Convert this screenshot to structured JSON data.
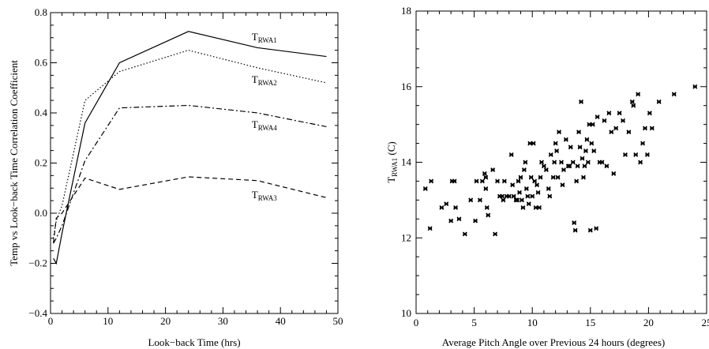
{
  "chart_data": [
    {
      "type": "line",
      "xlabel": "Look−back Time (hrs)",
      "ylabel": "Temp vs Look−back Time Correlation Coefficient",
      "xlim": [
        0,
        50
      ],
      "ylim": [
        -0.4,
        0.8
      ],
      "xticks": [
        "0",
        "10",
        "20",
        "30",
        "40",
        "50"
      ],
      "yticks": [
        "−0.4",
        "−0.2",
        "0.0",
        "0.2",
        "0.4",
        "0.6",
        "0.8"
      ],
      "x": [
        0.5,
        1,
        2,
        6,
        12,
        24,
        36,
        48
      ],
      "series": [
        {
          "name": "RWA1",
          "style": "solid",
          "values": [
            -0.18,
            -0.2,
            -0.08,
            0.36,
            0.6,
            0.725,
            0.66,
            0.625
          ],
          "label_x": 35,
          "label_y": 0.69
        },
        {
          "name": "RWA2",
          "style": "dotted",
          "values": [
            -0.1,
            -0.03,
            0.03,
            0.45,
            0.565,
            0.65,
            0.58,
            0.52
          ],
          "label_x": 35,
          "label_y": 0.52
        },
        {
          "name": "RWA4",
          "style": "dashdot",
          "values": [
            -0.12,
            -0.1,
            -0.05,
            0.21,
            0.42,
            0.43,
            0.4,
            0.345
          ],
          "label_x": 35,
          "label_y": 0.34
        },
        {
          "name": "RWA3",
          "style": "dashed",
          "values": [
            -0.12,
            -0.02,
            0.0,
            0.14,
            0.095,
            0.145,
            0.13,
            0.062
          ],
          "label_x": 35,
          "label_y": 0.06
        }
      ]
    },
    {
      "type": "scatter",
      "xlabel": "Average Pitch Angle over Previous 24 hours (degrees)",
      "ylabel_main": "T",
      "ylabel_sub": "RWA1",
      "ylabel_unit": " (C)",
      "xlim": [
        0,
        25
      ],
      "ylim": [
        10,
        18
      ],
      "xticks": [
        "0",
        "5",
        "10",
        "15",
        "20",
        "25"
      ],
      "yticks": [
        "10",
        "12",
        "14",
        "16",
        "18"
      ],
      "points": [
        [
          0.8,
          13.3
        ],
        [
          1.3,
          13.5
        ],
        [
          1.2,
          12.25
        ],
        [
          2.2,
          12.8
        ],
        [
          2.6,
          12.9
        ],
        [
          3.1,
          13.5
        ],
        [
          3.3,
          13.5
        ],
        [
          3.0,
          12.45
        ],
        [
          3.4,
          12.8
        ],
        [
          3.7,
          12.5
        ],
        [
          4.2,
          12.1
        ],
        [
          4.7,
          13.0
        ],
        [
          5.1,
          12.45
        ],
        [
          5.2,
          13.5
        ],
        [
          5.5,
          13.0
        ],
        [
          5.7,
          13.5
        ],
        [
          5.9,
          13.7
        ],
        [
          6.0,
          13.6
        ],
        [
          6.0,
          13.3
        ],
        [
          6.1,
          12.8
        ],
        [
          6.2,
          12.6
        ],
        [
          6.6,
          13.8
        ],
        [
          6.8,
          12.1
        ],
        [
          7.0,
          13.5
        ],
        [
          7.2,
          13.1
        ],
        [
          7.4,
          13.1
        ],
        [
          7.5,
          13.0
        ],
        [
          7.6,
          13.5
        ],
        [
          7.8,
          13.1
        ],
        [
          8.0,
          13.1
        ],
        [
          8.2,
          14.2
        ],
        [
          8.3,
          13.4
        ],
        [
          8.4,
          13.1
        ],
        [
          8.6,
          13.0
        ],
        [
          8.7,
          13.0
        ],
        [
          8.8,
          13.5
        ],
        [
          8.9,
          13.2
        ],
        [
          9.0,
          13.6
        ],
        [
          9.1,
          13.0
        ],
        [
          9.2,
          12.8
        ],
        [
          9.3,
          13.8
        ],
        [
          9.4,
          14.0
        ],
        [
          9.5,
          13.3
        ],
        [
          9.6,
          13.1
        ],
        [
          9.7,
          12.9
        ],
        [
          9.8,
          14.5
        ],
        [
          9.9,
          13.6
        ],
        [
          10.0,
          13.1
        ],
        [
          10.1,
          14.5
        ],
        [
          10.2,
          13.5
        ],
        [
          10.3,
          12.8
        ],
        [
          10.4,
          13.4
        ],
        [
          10.5,
          13.2
        ],
        [
          10.6,
          12.8
        ],
        [
          10.7,
          13.6
        ],
        [
          10.8,
          14.0
        ],
        [
          11.0,
          13.9
        ],
        [
          11.2,
          13.8
        ],
        [
          11.4,
          13.3
        ],
        [
          11.5,
          13.1
        ],
        [
          11.6,
          14.2
        ],
        [
          11.8,
          13.6
        ],
        [
          11.9,
          14.0
        ],
        [
          12.0,
          14.5
        ],
        [
          12.1,
          14.3
        ],
        [
          12.2,
          13.6
        ],
        [
          12.3,
          14.8
        ],
        [
          12.5,
          14.0
        ],
        [
          12.6,
          13.4
        ],
        [
          12.7,
          13.8
        ],
        [
          12.9,
          14.6
        ],
        [
          13.1,
          13.9
        ],
        [
          13.2,
          13.9
        ],
        [
          13.3,
          14.4
        ],
        [
          13.5,
          14.0
        ],
        [
          13.6,
          12.4
        ],
        [
          13.7,
          12.2
        ],
        [
          13.8,
          13.5
        ],
        [
          13.9,
          13.9
        ],
        [
          14.0,
          14.8
        ],
        [
          14.1,
          14.4
        ],
        [
          14.2,
          15.6
        ],
        [
          14.3,
          14.1
        ],
        [
          14.4,
          13.6
        ],
        [
          14.5,
          13.9
        ],
        [
          14.6,
          14.3
        ],
        [
          14.7,
          14.6
        ],
        [
          14.8,
          14.0
        ],
        [
          14.9,
          15.0
        ],
        [
          15.0,
          12.2
        ],
        [
          15.1,
          14.5
        ],
        [
          15.2,
          15.0
        ],
        [
          15.3,
          14.3
        ],
        [
          15.5,
          12.25
        ],
        [
          15.6,
          15.2
        ],
        [
          15.8,
          14.0
        ],
        [
          16.0,
          14.0
        ],
        [
          16.2,
          15.1
        ],
        [
          16.4,
          13.9
        ],
        [
          16.6,
          15.3
        ],
        [
          16.8,
          14.8
        ],
        [
          17.0,
          13.7
        ],
        [
          17.2,
          14.9
        ],
        [
          17.5,
          15.3
        ],
        [
          17.8,
          15.1
        ],
        [
          18.0,
          14.2
        ],
        [
          18.3,
          14.8
        ],
        [
          18.6,
          15.6
        ],
        [
          18.7,
          15.5
        ],
        [
          18.9,
          14.2
        ],
        [
          19.1,
          15.8
        ],
        [
          19.3,
          14.0
        ],
        [
          19.5,
          14.5
        ],
        [
          19.7,
          14.9
        ],
        [
          19.9,
          14.2
        ],
        [
          20.1,
          15.3
        ],
        [
          20.3,
          14.9
        ],
        [
          20.9,
          15.6
        ],
        [
          22.2,
          15.8
        ],
        [
          24.0,
          16.0
        ]
      ]
    }
  ]
}
